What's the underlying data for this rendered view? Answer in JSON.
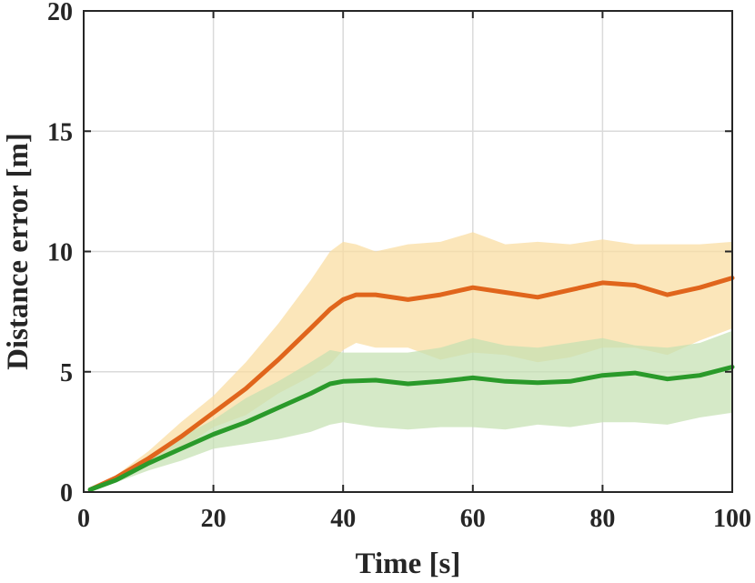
{
  "chart_data": {
    "type": "line",
    "title": "",
    "xlabel": "Time [s]",
    "ylabel": "Distance error [m]",
    "xlim": [
      0,
      100
    ],
    "ylim": [
      0,
      20
    ],
    "xticks": [
      0,
      20,
      40,
      60,
      80,
      100
    ],
    "yticks": [
      0,
      5,
      10,
      15,
      20
    ],
    "xtick_labels": [
      "0",
      "20",
      "40",
      "60",
      "80",
      "100"
    ],
    "ytick_labels": [
      "0",
      "5",
      "10",
      "15",
      "20"
    ],
    "grid": true,
    "legend": null,
    "series": [
      {
        "name": "orange",
        "color": "#e0651c",
        "band_color": "#f9dd9f",
        "x": [
          1,
          5,
          10,
          15,
          20,
          25,
          30,
          35,
          38,
          40,
          42,
          45,
          50,
          55,
          60,
          65,
          70,
          75,
          80,
          85,
          90,
          95,
          100
        ],
        "mean": [
          0.1,
          0.6,
          1.4,
          2.3,
          3.3,
          4.3,
          5.5,
          6.8,
          7.6,
          8.0,
          8.2,
          8.2,
          8.0,
          8.2,
          8.5,
          8.3,
          8.1,
          8.4,
          8.7,
          8.6,
          8.2,
          8.5,
          8.9
        ],
        "upper": [
          0.1,
          0.7,
          1.7,
          2.9,
          4.0,
          5.4,
          7.0,
          8.8,
          10.0,
          10.4,
          10.3,
          10.0,
          10.3,
          10.4,
          10.8,
          10.3,
          10.4,
          10.3,
          10.5,
          10.3,
          10.3,
          10.3,
          10.4
        ],
        "lower": [
          0.1,
          0.5,
          1.1,
          1.8,
          2.7,
          3.2,
          4.1,
          4.8,
          5.3,
          5.9,
          6.2,
          6.0,
          6.0,
          5.5,
          5.8,
          5.7,
          5.4,
          5.6,
          6.0,
          6.0,
          5.7,
          6.3,
          6.8
        ]
      },
      {
        "name": "green",
        "color": "#2a9a2a",
        "band_color": "#c5e0b1",
        "x": [
          1,
          5,
          10,
          15,
          20,
          25,
          30,
          35,
          38,
          40,
          45,
          50,
          55,
          60,
          65,
          70,
          75,
          80,
          85,
          90,
          95,
          100
        ],
        "mean": [
          0.1,
          0.5,
          1.2,
          1.8,
          2.4,
          2.9,
          3.5,
          4.1,
          4.5,
          4.6,
          4.65,
          4.5,
          4.6,
          4.75,
          4.6,
          4.55,
          4.6,
          4.85,
          4.95,
          4.7,
          4.85,
          5.2
        ],
        "upper": [
          0.1,
          0.6,
          1.4,
          2.3,
          3.0,
          3.9,
          4.6,
          5.4,
          5.9,
          5.8,
          5.8,
          5.8,
          6.0,
          6.4,
          6.1,
          6.0,
          6.2,
          6.4,
          6.1,
          6.0,
          6.2,
          6.7
        ],
        "lower": [
          0.1,
          0.4,
          0.9,
          1.3,
          1.8,
          2.0,
          2.2,
          2.5,
          2.8,
          2.9,
          2.7,
          2.6,
          2.7,
          2.7,
          2.6,
          2.8,
          2.7,
          2.9,
          2.9,
          2.8,
          3.1,
          3.3
        ]
      }
    ]
  }
}
